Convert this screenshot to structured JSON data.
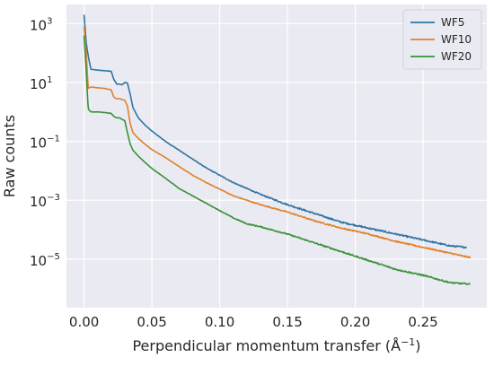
{
  "chart_data": {
    "type": "line",
    "title": "",
    "xlabel": "Perpendicular momentum transfer (Å⁻¹)",
    "xlabel_parts": {
      "prefix": "Perpendicular momentum transfer (Å",
      "sup": "−1",
      "suffix": ")"
    },
    "ylabel": "Raw counts",
    "x_range": [
      -0.013,
      0.297
    ],
    "y_range_log10": [
      -6.65,
      3.65
    ],
    "y_scale": "log",
    "grid": true,
    "legend_position": "top-right",
    "background_color": "#EAEAF2",
    "grid_color": "#FFFFFF",
    "x_ticks": [
      0.0,
      0.05,
      0.1,
      0.15,
      0.2,
      0.25
    ],
    "x_tick_labels": [
      "0.00",
      "0.05",
      "0.10",
      "0.15",
      "0.20",
      "0.25"
    ],
    "y_ticks_log10": [
      3,
      1,
      -1,
      -3,
      -5
    ],
    "y_tick_labels": [
      {
        "base": "10",
        "exp": "3"
      },
      {
        "base": "10",
        "exp": "1"
      },
      {
        "base": "10",
        "exp": "−1"
      },
      {
        "base": "10",
        "exp": "−3"
      },
      {
        "base": "10",
        "exp": "−5"
      }
    ],
    "series": [
      {
        "name": "WF5",
        "color": "#3274A1",
        "x": [
          0.0,
          0.0015,
          0.003,
          0.005,
          0.01,
          0.015,
          0.02,
          0.022,
          0.024,
          0.026,
          0.028,
          0.03,
          0.032,
          0.034,
          0.036,
          0.04,
          0.045,
          0.05,
          0.06,
          0.07,
          0.08,
          0.09,
          0.1,
          0.11,
          0.12,
          0.13,
          0.15,
          0.17,
          0.19,
          0.21,
          0.23,
          0.25,
          0.27,
          0.282
        ],
        "y_log10": [
          3.3,
          2.4,
          1.9,
          1.45,
          1.42,
          1.4,
          1.38,
          1.1,
          0.95,
          0.95,
          0.92,
          1.0,
          0.98,
          0.6,
          0.15,
          -0.2,
          -0.45,
          -0.65,
          -1.0,
          -1.3,
          -1.6,
          -1.9,
          -2.15,
          -2.4,
          -2.6,
          -2.8,
          -3.15,
          -3.45,
          -3.75,
          -3.95,
          -4.15,
          -4.35,
          -4.55,
          -4.6
        ]
      },
      {
        "name": "WF10",
        "color": "#E1812C",
        "x": [
          0.0,
          0.0015,
          0.003,
          0.005,
          0.01,
          0.015,
          0.02,
          0.022,
          0.024,
          0.026,
          0.028,
          0.03,
          0.032,
          0.034,
          0.036,
          0.04,
          0.045,
          0.05,
          0.06,
          0.07,
          0.08,
          0.09,
          0.1,
          0.11,
          0.12,
          0.13,
          0.15,
          0.17,
          0.19,
          0.21,
          0.23,
          0.25,
          0.27,
          0.285
        ],
        "y_log10": [
          2.9,
          2.1,
          0.8,
          0.85,
          0.82,
          0.8,
          0.75,
          0.5,
          0.45,
          0.45,
          0.42,
          0.4,
          0.2,
          -0.4,
          -0.7,
          -0.9,
          -1.1,
          -1.28,
          -1.55,
          -1.85,
          -2.15,
          -2.4,
          -2.62,
          -2.85,
          -3.0,
          -3.15,
          -3.4,
          -3.7,
          -3.95,
          -4.15,
          -4.4,
          -4.6,
          -4.8,
          -4.95
        ]
      },
      {
        "name": "WF20",
        "color": "#3A923A",
        "x": [
          0.0,
          0.0015,
          0.003,
          0.005,
          0.01,
          0.015,
          0.02,
          0.022,
          0.024,
          0.026,
          0.028,
          0.03,
          0.032,
          0.034,
          0.036,
          0.04,
          0.045,
          0.05,
          0.06,
          0.07,
          0.08,
          0.09,
          0.1,
          0.11,
          0.12,
          0.13,
          0.15,
          0.17,
          0.19,
          0.21,
          0.23,
          0.25,
          0.27,
          0.285
        ],
        "y_log10": [
          2.6,
          1.5,
          0.1,
          0.0,
          0.0,
          -0.02,
          -0.05,
          -0.15,
          -0.2,
          -0.2,
          -0.25,
          -0.3,
          -0.7,
          -1.1,
          -1.3,
          -1.5,
          -1.72,
          -1.92,
          -2.25,
          -2.6,
          -2.85,
          -3.1,
          -3.35,
          -3.6,
          -3.8,
          -3.9,
          -4.15,
          -4.45,
          -4.75,
          -5.05,
          -5.35,
          -5.55,
          -5.8,
          -5.85
        ]
      }
    ]
  }
}
